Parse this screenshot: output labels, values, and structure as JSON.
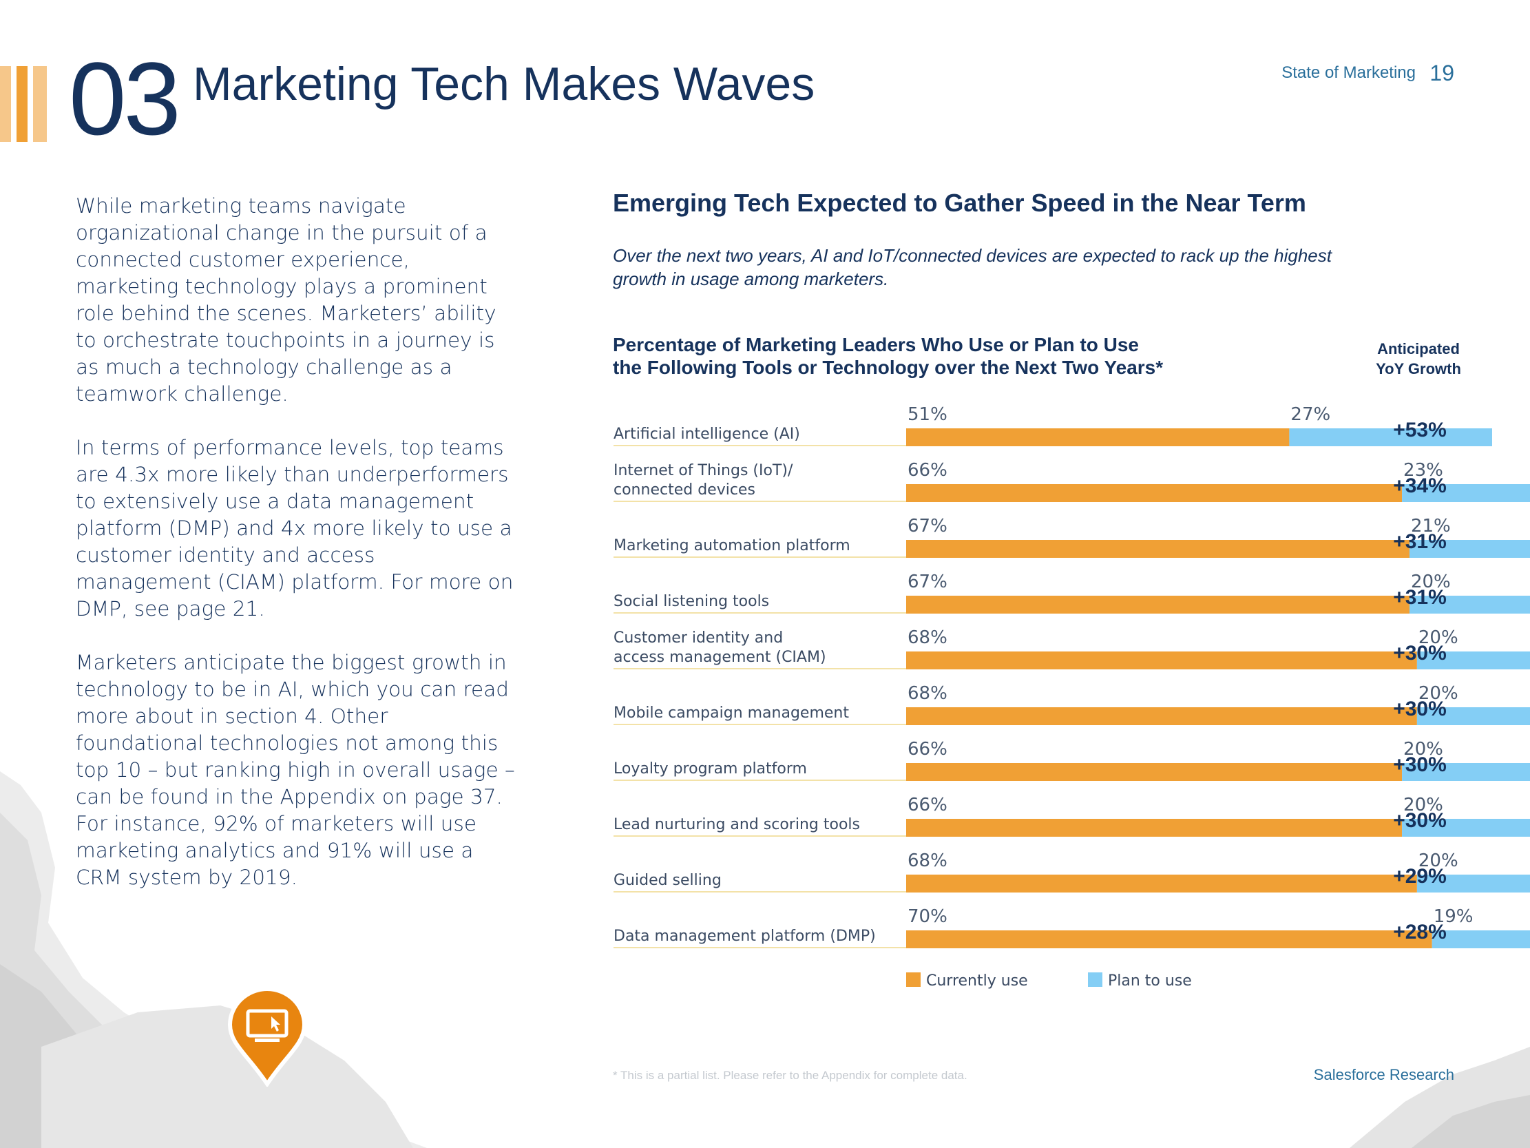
{
  "header": {
    "section_number": "03",
    "section_title": "Marketing Tech Makes Waves",
    "report_label": "State of Marketing",
    "page_number": "19"
  },
  "body": {
    "paragraphs": [
      "While marketing teams navigate organizational change in the pursuit of a connected customer experience, marketing technology plays a prominent role behind the scenes. Marketers’ ability to orchestrate touchpoints in a journey is as much a technology challenge as a teamwork challenge.",
      "In terms of performance levels, top teams are 4.3x more likely than underperformers to extensively use a data management platform (DMP) and 4x more likely to use a customer identity and access management (CIAM) platform. For more on DMP, see page 21.",
      "Marketers anticipate the biggest growth in technology to be in AI, which you can read more about in section 4. Other foundational technologies not among this top 10 – but ranking high in overall usage – can be found in the Appendix on page 37. For instance, 92% of marketers will use marketing analytics and 91% will use a CRM system by 2019."
    ]
  },
  "chart_section": {
    "heading": "Emerging Tech Expected to Gather Speed in the Near Term",
    "intro": "Over the next two years, AI and IoT/connected devices are expected to rack up the highest growth in usage among marketers.",
    "growth_header_line1": "Anticipated",
    "growth_header_line2": "YoY Growth",
    "footnote": "* This is a partial list. Please refer to the Appendix for complete data.",
    "icon": "monitor-pin-icon"
  },
  "chart_data": {
    "type": "bar",
    "orientation": "horizontal",
    "stacked": true,
    "title_line1": "Percentage of Marketing Leaders Who Use or Plan to Use",
    "title_line2": "the Following Tools or Technology over the Next Two Years*",
    "categories": [
      [
        "Artificial intelligence (AI)"
      ],
      [
        "Internet of Things (IoT)/",
        "connected devices"
      ],
      [
        "Marketing automation platform"
      ],
      [
        "Social listening tools"
      ],
      [
        "Customer identity and",
        "access management (CIAM)"
      ],
      [
        "Mobile campaign management"
      ],
      [
        "Loyalty program platform"
      ],
      [
        "Lead nurturing and scoring tools"
      ],
      [
        "Guided selling"
      ],
      [
        "Data management platform (DMP)"
      ]
    ],
    "series": [
      {
        "name": "Currently use",
        "color": "#f0a035",
        "values": [
          51,
          66,
          67,
          67,
          68,
          68,
          66,
          66,
          68,
          70
        ]
      },
      {
        "name": "Plan to use",
        "color": "#84cef5",
        "values": [
          27,
          23,
          21,
          20,
          20,
          20,
          20,
          20,
          20,
          19
        ]
      }
    ],
    "value_suffix": "%",
    "growth": [
      "+53%",
      "+34%",
      "+31%",
      "+31%",
      "+30%",
      "+30%",
      "+30%",
      "+30%",
      "+29%",
      "+28%"
    ],
    "xlim": [
      0,
      100
    ],
    "legend_position": "bottom"
  },
  "footer": {
    "brand": "Salesforce Research"
  },
  "colors": {
    "navy": "#16325c",
    "orange": "#f0a035",
    "light_blue": "#84cef5",
    "divider": "#f3e2a8"
  }
}
